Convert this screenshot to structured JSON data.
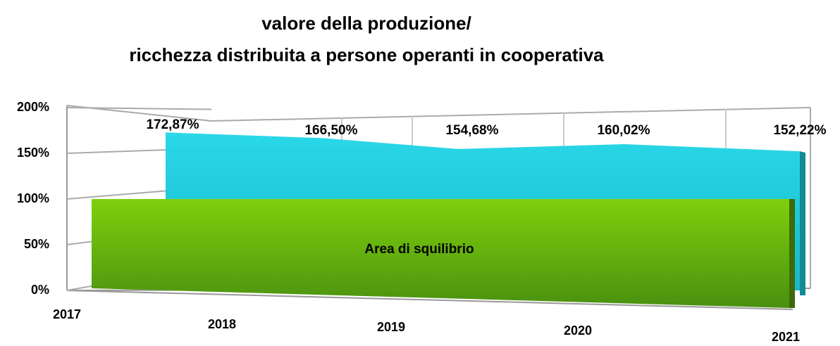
{
  "chart_data": {
    "type": "area",
    "title": "valore della produzione/",
    "subtitle": "ricchezza distribuita a persone operanti in cooperativa",
    "categories": [
      "2017",
      "2018",
      "2019",
      "2020",
      "2021"
    ],
    "series": [
      {
        "color": "#22d0e0",
        "values": [
          172.87,
          166.5,
          154.68,
          160.02,
          152.22
        ],
        "value_labels": [
          "172,87%",
          "166,50%",
          "154,68%",
          "160,02%",
          "152,22%"
        ]
      },
      {
        "name": "Area di squilibrio",
        "color": "#6cc010",
        "values": [
          100,
          100,
          100,
          100,
          100
        ]
      }
    ],
    "ylim": [
      0,
      200
    ],
    "yticks": [
      {
        "value": 0,
        "label": "0%"
      },
      {
        "value": 50,
        "label": "50%"
      },
      {
        "value": 100,
        "label": "100%"
      },
      {
        "value": 150,
        "label": "150%"
      },
      {
        "value": 200,
        "label": "200%"
      }
    ],
    "grid": true
  }
}
